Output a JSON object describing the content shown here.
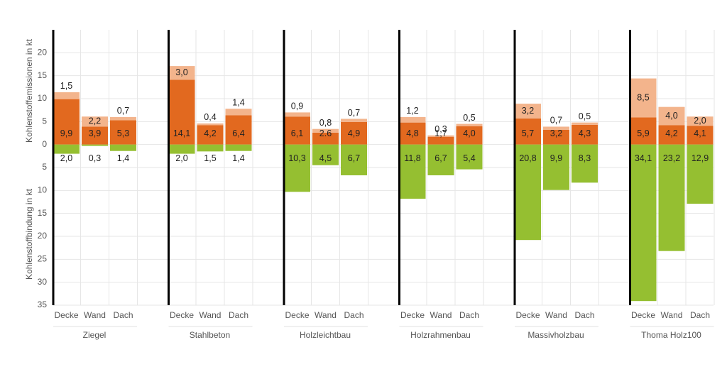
{
  "chart_data": {
    "type": "stacked-grouped-bar",
    "ylabel_top": "Kohlenstoffemissionen in kt",
    "ylabel_bottom": "Kohlenstoffbindung in kt",
    "ylim": [
      -35,
      25
    ],
    "yticks": [
      {
        "value": -35,
        "label": "35"
      },
      {
        "value": -30,
        "label": "30"
      },
      {
        "value": -25,
        "label": "25"
      },
      {
        "value": -20,
        "label": "20"
      },
      {
        "value": -15,
        "label": "15"
      },
      {
        "value": -10,
        "label": "10"
      },
      {
        "value": -5,
        "label": "5"
      },
      0,
      5,
      10,
      15,
      20
    ],
    "grid": true,
    "colors": [
      "#e2691f",
      "#f3b48c",
      "#95bf31"
    ],
    "groups": [
      {
        "name": "Ziegel",
        "categories": [
          "Decke",
          "Wand",
          "Dach"
        ],
        "series": [
          {
            "values": [
              9.9,
              3.9,
              5.3
            ],
            "value_labels": [
              "9,9",
              "3,9",
              "5,3"
            ]
          },
          {
            "values": [
              1.5,
              2.2,
              0.7
            ],
            "value_labels": [
              "1,5",
              "2,2",
              "0,7"
            ]
          },
          {
            "values": [
              -2.0,
              -0.3,
              -1.4
            ],
            "value_labels": [
              "2,0",
              "0,3",
              "1,4"
            ]
          }
        ]
      },
      {
        "name": "Stahlbeton",
        "categories": [
          "Decke",
          "Wand",
          "Dach"
        ],
        "series": [
          {
            "values": [
              14.1,
              4.2,
              6.4
            ],
            "value_labels": [
              "14,1",
              "4,2",
              "6,4"
            ]
          },
          {
            "values": [
              3.0,
              0.4,
              1.4
            ],
            "value_labels": [
              "3,0",
              "0,4",
              "1,4"
            ]
          },
          {
            "values": [
              -2.0,
              -1.5,
              -1.4
            ],
            "value_labels": [
              "2,0",
              "1,5",
              "1,4"
            ]
          }
        ]
      },
      {
        "name": "Holzleichtbau",
        "categories": [
          "Decke",
          "Wand",
          "Dach"
        ],
        "series": [
          {
            "values": [
              6.1,
              2.6,
              4.9
            ],
            "value_labels": [
              "6,1",
              "2.6",
              "4,9"
            ]
          },
          {
            "values": [
              0.9,
              0.8,
              0.7
            ],
            "value_labels": [
              "0,9",
              "0,8",
              "0,7"
            ]
          },
          {
            "values": [
              -10.3,
              -4.5,
              -6.7
            ],
            "value_labels": [
              "10,3",
              "4,5",
              "6,7"
            ]
          }
        ]
      },
      {
        "name": "Holzrahmenbau",
        "categories": [
          "Decke",
          "Wand",
          "Dach"
        ],
        "series": [
          {
            "values": [
              4.8,
              1.7,
              4.0
            ],
            "value_labels": [
              "4,8",
              "1,7",
              "4,0"
            ]
          },
          {
            "values": [
              1.2,
              0.3,
              0.5
            ],
            "value_labels": [
              "1,2",
              "0,3",
              "0,5"
            ]
          },
          {
            "values": [
              -11.8,
              -6.7,
              -5.4
            ],
            "value_labels": [
              "11,8",
              "6,7",
              "5,4"
            ]
          }
        ]
      },
      {
        "name": "Massivholzbau",
        "categories": [
          "Decke",
          "Wand",
          "Dach"
        ],
        "series": [
          {
            "values": [
              5.7,
              3.2,
              4.3
            ],
            "value_labels": [
              "5,7",
              "3,2",
              "4,3"
            ]
          },
          {
            "values": [
              3.2,
              0.7,
              0.5
            ],
            "value_labels": [
              "3,2",
              "0,7",
              "0,5"
            ]
          },
          {
            "values": [
              -20.8,
              -9.9,
              -8.3
            ],
            "value_labels": [
              "20,8",
              "9,9",
              "8,3"
            ]
          }
        ]
      },
      {
        "name": "Thoma Holz100",
        "categories": [
          "Decke",
          "Wand",
          "Dach"
        ],
        "series": [
          {
            "values": [
              5.9,
              4.2,
              4.1
            ],
            "value_labels": [
              "5,9",
              "4,2",
              "4,1"
            ]
          },
          {
            "values": [
              8.5,
              4.0,
              2.0
            ],
            "value_labels": [
              "8,5",
              "4,0",
              "2,0"
            ]
          },
          {
            "values": [
              -34.1,
              -23.2,
              -12.9
            ],
            "value_labels": [
              "34,1",
              "23,2",
              "12,9"
            ]
          }
        ]
      }
    ]
  }
}
